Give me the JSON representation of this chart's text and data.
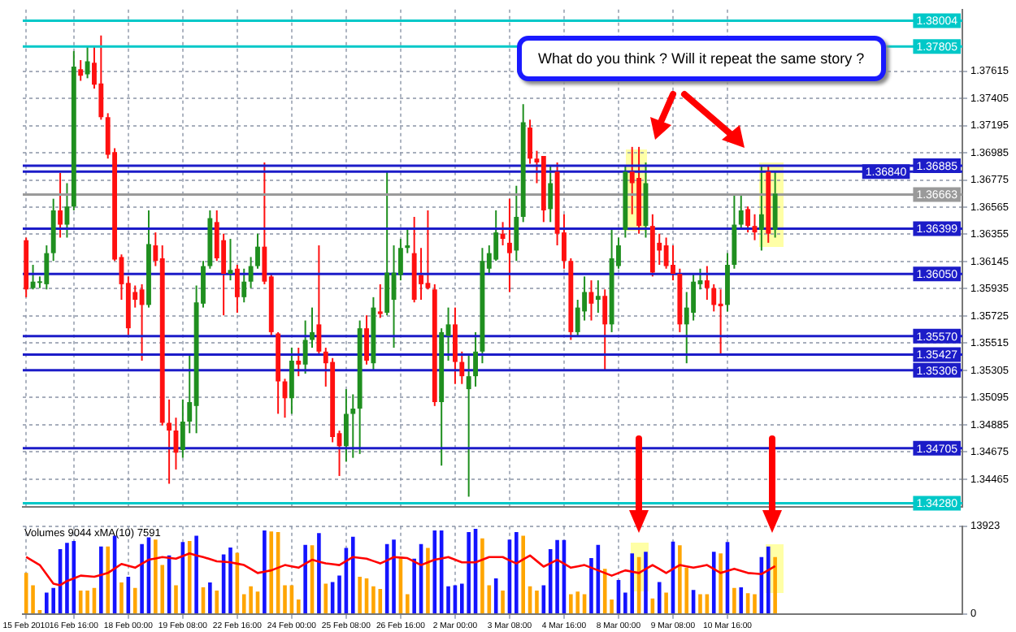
{
  "chart_data": [
    {
      "type": "candlestick",
      "tick_labels": "y",
      "grid": true,
      "legend": false,
      "categories": [
        null,
        null,
        null,
        null,
        null,
        null,
        null,
        null,
        null,
        null,
        null,
        null,
        null,
        null,
        null,
        null,
        null,
        null,
        null,
        null,
        null,
        null,
        null,
        null,
        null,
        null,
        null,
        null,
        null,
        null,
        null,
        null,
        null,
        null,
        null,
        null,
        null,
        null,
        null,
        null,
        null,
        null,
        null,
        null,
        null,
        null,
        null,
        null,
        null,
        null,
        null,
        null,
        null,
        null,
        null,
        null,
        null,
        null,
        null,
        null,
        null,
        null,
        null,
        null,
        null,
        null,
        null,
        null,
        null,
        null,
        null,
        null,
        null,
        null,
        null,
        null,
        null,
        null,
        null,
        null,
        null,
        null,
        null,
        null,
        null,
        null,
        null,
        null,
        null,
        null,
        null,
        null,
        null,
        null,
        null,
        null,
        null,
        null,
        null,
        null,
        null,
        null,
        null,
        null,
        null,
        null,
        null,
        null,
        null,
        null,
        null,
        null,
        null,
        null,
        null,
        null,
        null,
        null,
        null,
        null,
        null,
        null,
        null,
        null,
        null,
        null,
        null,
        null,
        null,
        null,
        null,
        null,
        null,
        null,
        null,
        null,
        null,
        null
      ],
      "ohlc": [
        [
          1.3631,
          1.3633,
          1.3587,
          1.3593
        ],
        [
          1.3594,
          1.3612,
          1.3593,
          1.3599
        ],
        [
          1.3598,
          1.3603,
          1.3594,
          1.3599
        ],
        [
          1.3597,
          1.3627,
          1.3593,
          1.3621
        ],
        [
          1.3621,
          1.3663,
          1.3615,
          1.3654
        ],
        [
          1.3654,
          1.3683,
          1.3633,
          1.3643
        ],
        [
          1.3643,
          1.3675,
          1.3633,
          1.3657
        ],
        [
          1.3657,
          1.3777,
          1.3654,
          1.3765
        ],
        [
          1.3763,
          1.377,
          1.3754,
          1.3758
        ],
        [
          1.3759,
          1.3781,
          1.3756,
          1.3769
        ],
        [
          1.3768,
          1.3781,
          1.3748,
          1.3751
        ],
        [
          1.3752,
          1.3789,
          1.3724,
          1.3726
        ],
        [
          1.3726,
          1.3729,
          1.3694,
          1.3697
        ],
        [
          1.3699,
          1.3702,
          1.3615,
          1.3616
        ],
        [
          1.3618,
          1.362,
          1.3585,
          1.3597
        ],
        [
          1.3598,
          1.3603,
          1.3558,
          1.3563
        ],
        [
          1.3591,
          1.3596,
          1.3579,
          1.3585
        ],
        [
          1.3593,
          1.3597,
          1.3538,
          1.3581
        ],
        [
          1.3581,
          1.3654,
          1.3579,
          1.3628
        ],
        [
          1.3627,
          1.3637,
          1.3611,
          1.3615
        ],
        [
          1.3617,
          1.3627,
          1.3488,
          1.349
        ],
        [
          1.349,
          1.3508,
          1.3443,
          1.3484
        ],
        [
          1.3484,
          1.3494,
          1.3454,
          1.3467
        ],
        [
          1.3469,
          1.3508,
          1.3463,
          1.3491
        ],
        [
          1.3491,
          1.3542,
          1.3482,
          1.3506
        ],
        [
          1.3503,
          1.3596,
          1.3482,
          1.3583
        ],
        [
          1.3582,
          1.3615,
          1.3579,
          1.3611
        ],
        [
          1.3611,
          1.3654,
          1.3609,
          1.3648
        ],
        [
          1.3645,
          1.3654,
          1.3615,
          1.3617
        ],
        [
          1.3631,
          1.3636,
          1.3573,
          1.3605
        ],
        [
          1.3605,
          1.3632,
          1.36,
          1.3608
        ],
        [
          1.3609,
          1.3612,
          1.3575,
          1.3587
        ],
        [
          1.3587,
          1.3609,
          1.3583,
          1.3599
        ],
        [
          1.3599,
          1.3618,
          1.3594,
          1.3611
        ],
        [
          1.3611,
          1.3636,
          1.3609,
          1.3626
        ],
        [
          1.3626,
          1.3691,
          1.3597,
          1.3599
        ],
        [
          1.3603,
          1.3605,
          1.3557,
          1.356
        ],
        [
          1.3559,
          1.356,
          1.3497,
          1.3522
        ],
        [
          1.3522,
          1.3524,
          1.3494,
          1.3509
        ],
        [
          1.3509,
          1.3548,
          1.3497,
          1.3538
        ],
        [
          1.3538,
          1.3548,
          1.3526,
          1.3535
        ],
        [
          1.3535,
          1.3569,
          1.3528,
          1.3554
        ],
        [
          1.3554,
          1.3579,
          1.3548,
          1.356
        ],
        [
          1.3566,
          1.3627,
          1.3542,
          1.3545
        ],
        [
          1.3545,
          1.3548,
          1.3518,
          1.3536
        ],
        [
          1.3537,
          1.354,
          1.3475,
          1.3479
        ],
        [
          1.3482,
          1.3484,
          1.3449,
          1.3472
        ],
        [
          1.3472,
          1.3516,
          1.346,
          1.3497
        ],
        [
          1.3497,
          1.3512,
          1.3463,
          1.3501
        ],
        [
          1.3501,
          1.3569,
          1.3466,
          1.3563
        ],
        [
          1.3563,
          1.3573,
          1.3535,
          1.3538
        ],
        [
          1.3536,
          1.3587,
          1.353,
          1.3579
        ],
        [
          1.3576,
          1.3597,
          1.3571,
          1.3574
        ],
        [
          1.3575,
          1.3684,
          1.3573,
          1.3606
        ],
        [
          1.3585,
          1.3627,
          1.3548,
          1.3606
        ],
        [
          1.3604,
          1.3632,
          1.36,
          1.3625
        ],
        [
          1.3625,
          1.3639,
          1.3621,
          1.3627
        ],
        [
          1.3621,
          1.3649,
          1.3583,
          1.3585
        ],
        [
          1.3604,
          1.3625,
          1.3585,
          1.3597
        ],
        [
          1.3598,
          1.3654,
          1.3593,
          1.3594
        ],
        [
          1.3593,
          1.3597,
          1.3503,
          1.3506
        ],
        [
          1.3506,
          1.3563,
          1.3457,
          1.356
        ],
        [
          1.3557,
          1.3579,
          1.3538,
          1.3566
        ],
        [
          1.3566,
          1.3579,
          1.352,
          1.3537
        ],
        [
          1.3537,
          1.3545,
          1.352,
          1.3526
        ],
        [
          1.3516,
          1.3542,
          1.3433,
          1.3526
        ],
        [
          1.3526,
          1.356,
          1.3518,
          1.3545
        ],
        [
          1.3545,
          1.3625,
          1.3536,
          1.3615
        ],
        [
          1.3609,
          1.3627,
          1.3605,
          1.3621
        ],
        [
          1.3616,
          1.3654,
          1.3615,
          1.3637
        ],
        [
          1.3636,
          1.3645,
          1.3627,
          1.3632
        ],
        [
          1.3629,
          1.3663,
          1.3591,
          1.3621
        ],
        [
          1.3623,
          1.3673,
          1.3615,
          1.3649
        ],
        [
          1.3649,
          1.3736,
          1.3645,
          1.3722
        ],
        [
          1.3718,
          1.3724,
          1.369,
          1.3694
        ],
        [
          1.3694,
          1.37,
          1.3675,
          1.3691
        ],
        [
          1.3696,
          1.3696,
          1.3645,
          1.3654
        ],
        [
          1.3655,
          1.3688,
          1.3645,
          1.3675
        ],
        [
          1.3684,
          1.3691,
          1.3627,
          1.3636
        ],
        [
          1.3637,
          1.3651,
          1.3609,
          1.3615
        ],
        [
          1.3615,
          1.3617,
          1.3554,
          1.356
        ],
        [
          1.356,
          1.3585,
          1.3557,
          1.3579
        ],
        [
          1.3576,
          1.3603,
          1.3569,
          1.3591
        ],
        [
          1.3591,
          1.36,
          1.3569,
          1.3582
        ],
        [
          1.3585,
          1.36,
          1.3575,
          1.3588
        ],
        [
          1.3588,
          1.3593,
          1.353,
          1.3566
        ],
        [
          1.3566,
          1.3639,
          1.356,
          1.3617
        ],
        [
          1.3611,
          1.3633,
          1.3609,
          1.3627
        ],
        [
          1.3639,
          1.3688,
          1.3633,
          1.3684
        ],
        [
          1.3684,
          1.3703,
          1.3651,
          1.3675
        ],
        [
          1.3679,
          1.3703,
          1.3636,
          1.3642
        ],
        [
          1.3642,
          1.3691,
          1.3633,
          1.3675
        ],
        [
          1.3642,
          1.3651,
          1.3603,
          1.3606
        ],
        [
          1.3629,
          1.3636,
          1.3612,
          1.3623
        ],
        [
          1.3627,
          1.3633,
          1.3609,
          1.3611
        ],
        [
          1.3612,
          1.3627,
          1.36,
          1.3605
        ],
        [
          1.3605,
          1.3609,
          1.356,
          1.3566
        ],
        [
          1.3566,
          1.3591,
          1.3536,
          1.3579
        ],
        [
          1.3575,
          1.3605,
          1.3569,
          1.3599
        ],
        [
          1.3597,
          1.3609,
          1.3593,
          1.36
        ],
        [
          1.36,
          1.3611,
          1.3585,
          1.3594
        ],
        [
          1.3594,
          1.3597,
          1.3576,
          1.3581
        ],
        [
          1.3582,
          1.3593,
          1.3542,
          1.358
        ],
        [
          1.3581,
          1.3621,
          1.3576,
          1.3612
        ],
        [
          1.3612,
          1.3666,
          1.3609,
          1.3643
        ],
        [
          1.3643,
          1.3667,
          1.3639,
          1.3654
        ],
        [
          1.3655,
          1.3657,
          1.3637,
          1.3642
        ],
        [
          1.3642,
          1.3651,
          1.3631,
          1.3637
        ],
        [
          1.3639,
          1.3688,
          1.3623,
          1.3651
        ],
        [
          1.3684,
          1.3688,
          1.3629,
          1.3636
        ],
        [
          1.3639,
          1.3684,
          1.3633,
          1.3667
        ],
        null,
        null,
        null,
        null,
        null,
        null,
        null,
        null,
        null,
        null,
        null,
        null,
        null,
        null,
        null,
        null,
        null,
        null,
        null,
        null,
        null,
        null,
        null,
        null,
        null,
        null,
        null
      ],
      "ylim": [
        1.3425,
        1.3809
      ],
      "yticks": [
        1.37615,
        1.37405,
        1.37195,
        1.36985,
        1.36775,
        1.36565,
        1.36355,
        1.36145,
        1.35935,
        1.35725,
        1.35515,
        1.35305,
        1.35095,
        1.34885,
        1.34675,
        1.34465
      ],
      "ref_lines": [
        {
          "axis": "y",
          "value": 1.38004,
          "label": "1.38004",
          "color": "#00c8c8"
        },
        {
          "axis": "y",
          "value": 1.37805,
          "label": "1.37805",
          "color": "#00c8c8"
        },
        {
          "axis": "y",
          "value": 1.36885,
          "label": "1.36885",
          "color": "#1c1cc8"
        },
        {
          "axis": "y",
          "value": 1.3684,
          "label": "1.36840",
          "color": "#1c1cc8"
        },
        {
          "axis": "y",
          "value": 1.36663,
          "label": "1.36663",
          "color": "#9a9a9a"
        },
        {
          "axis": "y",
          "value": 1.36399,
          "label": "1.36399",
          "color": "#1c1cc8"
        },
        {
          "axis": "y",
          "value": 1.3605,
          "label": "1.36050",
          "color": "#1c1cc8"
        },
        {
          "axis": "y",
          "value": 1.3557,
          "label": "1.35570",
          "color": "#1c1cc8"
        },
        {
          "axis": "y",
          "value": 1.35427,
          "label": "1.35427",
          "color": "#1c1cc8"
        },
        {
          "axis": "y",
          "value": 1.35306,
          "label": "1.35306",
          "color": "#1c1cc8"
        },
        {
          "axis": "y",
          "value": 1.34705,
          "label": "1.34705",
          "color": "#1c1cc8"
        },
        {
          "axis": "y",
          "value": 1.3428,
          "label": "1.34280",
          "color": "#00c8c8"
        }
      ],
      "annotations": [
        "What do you think ? Will it repeat the same story ?"
      ]
    },
    {
      "type": "bar",
      "title": "Volumes 9044 xMA(10) 7591",
      "grid": true,
      "legend": false,
      "categories": [
        "15 Feb 2010",
        null,
        null,
        null,
        null,
        null,
        null,
        "16 Feb 16:00",
        null,
        null,
        null,
        null,
        null,
        null,
        null,
        "18 Feb 00:00",
        null,
        null,
        null,
        null,
        null,
        null,
        null,
        "19 Feb 08:00",
        null,
        null,
        null,
        null,
        null,
        null,
        null,
        "22 Feb 16:00",
        null,
        null,
        null,
        null,
        null,
        null,
        null,
        "24 Feb 00:00",
        null,
        null,
        null,
        null,
        null,
        null,
        null,
        "25 Feb 08:00",
        null,
        null,
        null,
        null,
        null,
        null,
        null,
        "26 Feb 16:00",
        null,
        null,
        null,
        null,
        null,
        null,
        null,
        "2 Mar 00:00",
        null,
        null,
        null,
        null,
        null,
        null,
        null,
        "3 Mar 08:00",
        null,
        null,
        null,
        null,
        null,
        null,
        null,
        "4 Mar 16:00",
        null,
        null,
        null,
        null,
        null,
        null,
        null,
        "8 Mar 00:00",
        null,
        null,
        null,
        null,
        null,
        null,
        null,
        "9 Mar 08:00",
        null,
        null,
        null,
        null,
        null,
        null,
        null,
        "10 Mar 16:00",
        null,
        null,
        null,
        null,
        null,
        null,
        null,
        null,
        null,
        null,
        null,
        null,
        null,
        null,
        null,
        null,
        null,
        null,
        null,
        null,
        null,
        null,
        null,
        null,
        null,
        null,
        null,
        null,
        null,
        null,
        null,
        null,
        null,
        null
      ],
      "series": [
        {
          "type": "bar",
          "colors": [
            "#ffa500",
            "#ffa500",
            "#ffa500",
            "#1414ff",
            "#1414ff",
            "#1414ff",
            "#1414ff",
            "#1414ff",
            "#ffa500",
            "#ffa500",
            "#ffa500",
            "#1414ff",
            "#ffa500",
            "#1414ff",
            "#ffa500",
            "#1414ff",
            "#ffa500",
            "#1414ff",
            "#1414ff",
            "#ffa500",
            "#ffa500",
            "#1414ff",
            "#ffa500",
            "#1414ff",
            "#ffa500",
            "#1414ff",
            "#ffa500",
            "#1414ff",
            "#ffa500",
            "#1414ff",
            "#1414ff",
            "#ffa500",
            "#ffa500",
            "#ffa500",
            "#ffa500",
            "#1414ff",
            "#ffa500",
            "#ffa500",
            "#ffa500",
            "#ffa500",
            "#ffa500",
            "#1414ff",
            "#ffa500",
            "#1414ff",
            "#ffa500",
            "#1414ff",
            "#1414ff",
            "#1414ff",
            "#1414ff",
            "#ffa500",
            "#ffa500",
            "#ffa500",
            "#ffa500",
            "#1414ff",
            "#1414ff",
            "#ffa500",
            "#ffa500",
            "#1414ff",
            "#1414ff",
            "#ffa500",
            "#1414ff",
            "#1414ff",
            "#1414ff",
            "#1414ff",
            "#1414ff",
            "#1414ff",
            "#1414ff",
            "#ffa500",
            "#ffa500",
            "#1414ff",
            "#ffa500",
            "#1414ff",
            "#1414ff",
            "#ffa500",
            "#ffa500",
            "#ffa500",
            "#1414ff",
            "#1414ff",
            "#1414ff",
            "#1414ff",
            "#ffa500",
            "#ffa500",
            "#ffa500",
            "#1414ff",
            "#1414ff",
            "#ffa500",
            "#ffa500",
            "#1414ff",
            "#1414ff",
            "#1414ff",
            "#ffa500",
            "#1414ff",
            "#ffa500",
            "#1414ff",
            "#ffa500",
            "#1414ff",
            "#ffa500",
            "#ffa500",
            "#1414ff",
            "#ffa500",
            "#ffa500",
            "#1414ff",
            "#ffa500",
            "#1414ff",
            "#ffa500",
            "#1414ff",
            "#ffa500",
            "#ffa500",
            "#1414ff",
            "#1414ff",
            "#ffa500",
            null,
            null,
            null,
            null,
            null,
            null,
            null,
            null,
            null,
            null,
            null,
            null,
            null,
            null,
            null,
            null,
            null,
            null,
            null,
            null,
            null,
            null,
            null,
            null,
            null,
            null,
            null
          ],
          "values": [
            6500,
            4560,
            600,
            3380,
            4140,
            10300,
            11300,
            11560,
            3700,
            3700,
            4140,
            10700,
            10700,
            12400,
            5000,
            5900,
            4140,
            11100,
            12150,
            11800,
            7760,
            9280,
            4560,
            11400,
            11560,
            12400,
            4220,
            5000,
            3700,
            9450,
            10550,
            9700,
            3120,
            4390,
            3540,
            13250,
            13080,
            13000,
            4560,
            4560,
            2280,
            10970,
            10900,
            12830,
            4810,
            5060,
            6080,
            10470,
            12240,
            5900,
            5650,
            4390,
            3970,
            11100,
            11800,
            9030,
            3120,
            8780,
            11100,
            10470,
            13250,
            13250,
            4390,
            4560,
            4810,
            13000,
            13500,
            12000,
            4560,
            5650,
            3700,
            11800,
            13000,
            12400,
            4390,
            3700,
            4560,
            10300,
            11730,
            11730,
            3120,
            3540,
            3120,
            8860,
            10970,
            7170,
            2280,
            5400,
            3380,
            9620,
            9030,
            9870,
            2450,
            5060,
            3380,
            11480,
            10900,
            7340,
            3800,
            3120,
            3120,
            9870,
            9620,
            11400,
            4140,
            4220,
            3290,
            3120,
            9030,
            10700,
            9044,
            null,
            null,
            null,
            null,
            null,
            null,
            null,
            null,
            null,
            null,
            null,
            null,
            null,
            null,
            null,
            null,
            null,
            null,
            null,
            null,
            null,
            null,
            null,
            null,
            null,
            null,
            null
          ]
        },
        {
          "type": "line",
          "color": "#ff0000",
          "values": [
            9030,
            8400,
            7760,
            6300,
            4810,
            4560,
            5230,
            5650,
            6080,
            6000,
            5900,
            6200,
            6500,
            7200,
            7930,
            7640,
            7340,
            7970,
            8600,
            8800,
            9030,
            8900,
            8780,
            9200,
            9620,
            9300,
            9030,
            8700,
            8360,
            8280,
            8190,
            7980,
            7760,
            7130,
            6500,
            6700,
            6920,
            7340,
            7760,
            7550,
            7340,
            7970,
            8600,
            8300,
            8020,
            7890,
            7760,
            8400,
            9030,
            8900,
            8780,
            8400,
            8020,
            8500,
            9030,
            8950,
            8860,
            8300,
            7760,
            8200,
            8600,
            8800,
            9030,
            8600,
            8190,
            8190,
            8190,
            8600,
            9030,
            9030,
            9030,
            8500,
            8020,
            8650,
            9280,
            8400,
            7510,
            8050,
            8600,
            7970,
            7340,
            7550,
            7760,
            7340,
            6920,
            6500,
            6080,
            6500,
            6920,
            6700,
            6500,
            7130,
            7760,
            7130,
            6500,
            7130,
            7760,
            7550,
            7340,
            7550,
            7760,
            7130,
            6500,
            6840,
            7170,
            6840,
            6500,
            6420,
            6330,
            6960,
            7591,
            null,
            null,
            null,
            null,
            null,
            null,
            null,
            null,
            null,
            null,
            null,
            null,
            null,
            null,
            null,
            null,
            null,
            null,
            null,
            null,
            null,
            null,
            null,
            null,
            null,
            null,
            null
          ]
        }
      ],
      "ylim": [
        0,
        13923
      ],
      "yticks": [
        0,
        13923
      ]
    }
  ]
}
